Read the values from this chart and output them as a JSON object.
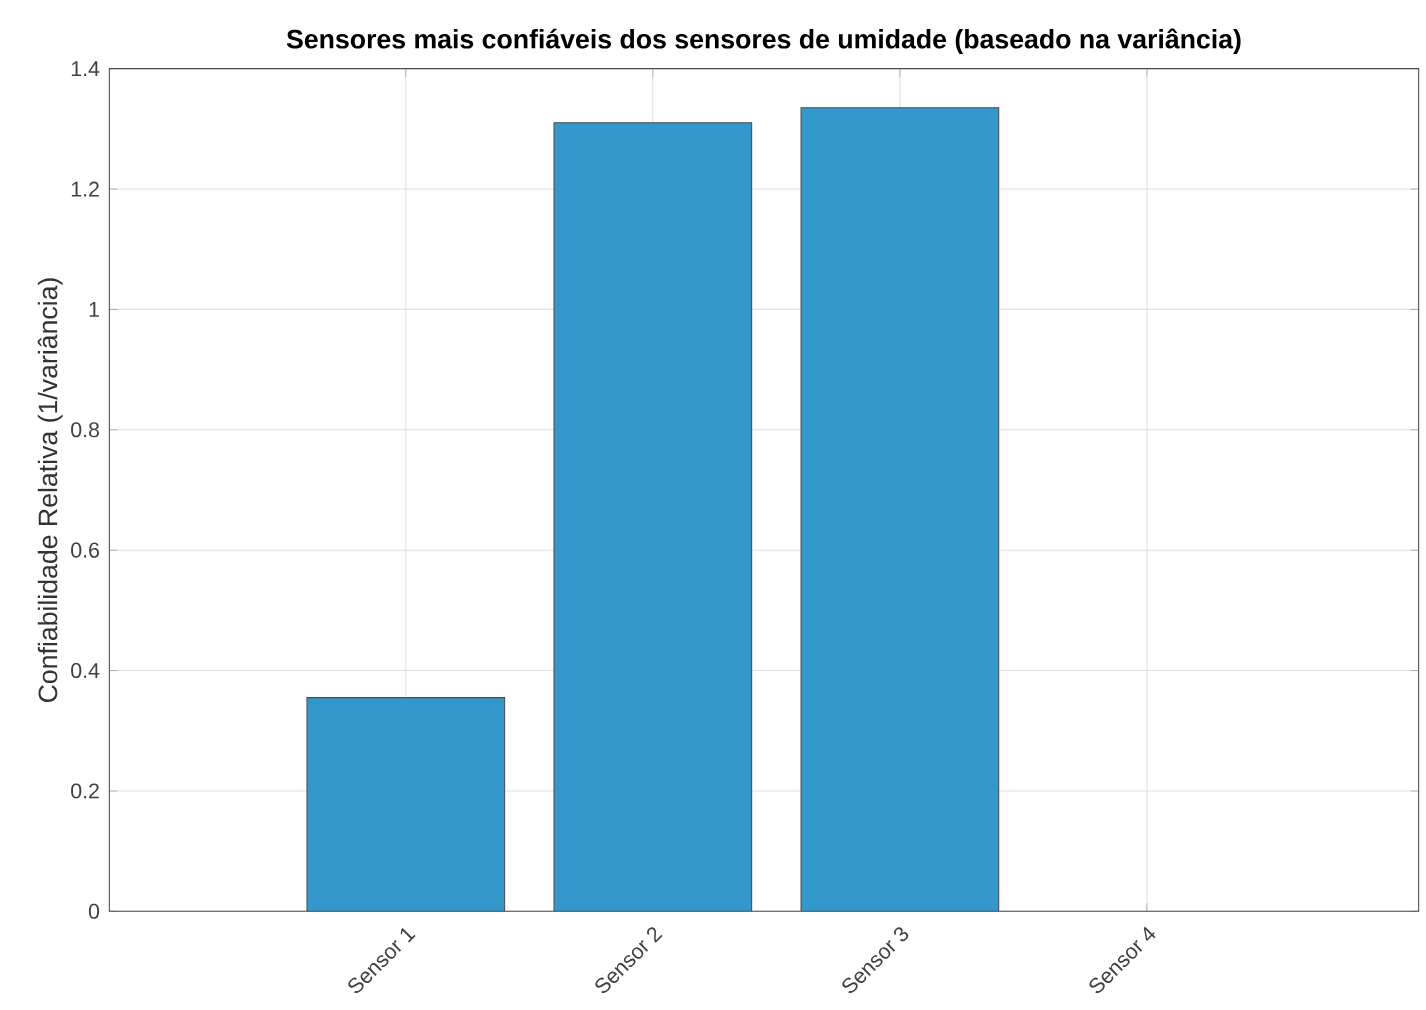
{
  "chart_data": {
    "type": "bar",
    "title": "Sensores mais confiáveis dos sensores de umidade (baseado na variância)",
    "ylabel": "Confiabilidade Relativa (1/variância)",
    "categories": [
      "Sensor 1",
      "Sensor 2",
      "Sensor 3",
      "Sensor 4"
    ],
    "values": [
      0.355,
      1.31,
      1.335,
      0
    ],
    "color": "#3399cc",
    "ylim": [
      0,
      1.4
    ],
    "yticks": [
      0,
      0.2,
      0.4,
      0.6,
      0.8,
      1,
      1.2,
      1.4
    ],
    "grid": true
  }
}
